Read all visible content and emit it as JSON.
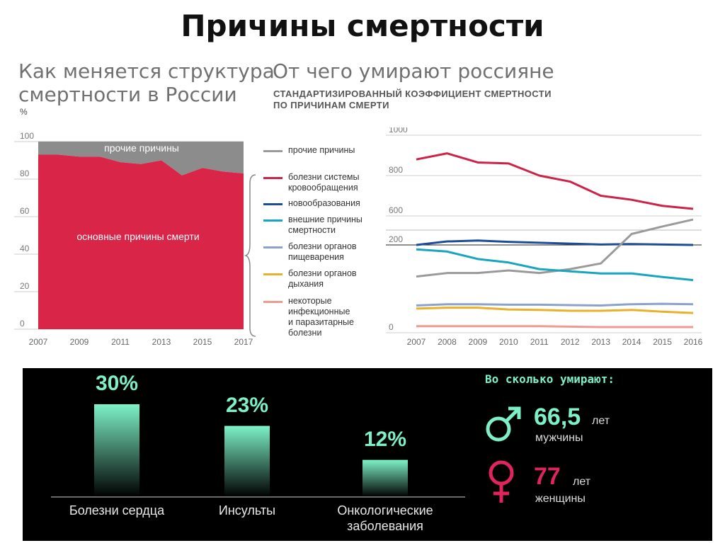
{
  "title": "Причины смертности",
  "left": {
    "title_line1": "Как меняется структура",
    "title_line2": "смертности в России",
    "unit": "%"
  },
  "right": {
    "title": "От чего умирают россияне",
    "subtitle_line1": "СТАНДАРТИЗИРОВАННЫЙ КОЭФФИЦИЕНТ СМЕРТНОСТИ",
    "subtitle_line2": "ПО ПРИЧИНАМ СМЕРТИ"
  },
  "legend": [
    {
      "lines": [
        "прочие причины"
      ],
      "color": "#9a9a9a"
    },
    {
      "lines": [
        "болезни системы",
        "кровообращения"
      ],
      "color": "#cc2348"
    },
    {
      "lines": [
        "новообразования"
      ],
      "color": "#1e4c96"
    },
    {
      "lines": [
        "внешние причины",
        "смертности"
      ],
      "color": "#17a5bf"
    },
    {
      "lines": [
        "болезни органов",
        "пищеварения"
      ],
      "color": "#8aa2cc"
    },
    {
      "lines": [
        "болезни органов",
        "дыхания"
      ],
      "color": "#e8b12a"
    },
    {
      "lines": [
        "некоторые",
        "инфекционные",
        "и паразитарные",
        "болезни"
      ],
      "color": "#f09a90"
    }
  ],
  "chart_data": [
    {
      "type": "area",
      "x": [
        "2007",
        "2008",
        "2009",
        "2010",
        "2011",
        "2012",
        "2013",
        "2014",
        "2015",
        "2016",
        "2017"
      ],
      "x_ticks": [
        "2007",
        "2009",
        "2011",
        "2013",
        "2015",
        "2017"
      ],
      "ylim": [
        0,
        100
      ],
      "y_ticks": [
        "0",
        "20",
        "40",
        "60",
        "80",
        "100"
      ],
      "series": [
        {
          "name": "основные причины смерти",
          "color": "#d92548",
          "values": [
            93,
            93,
            92,
            92,
            89,
            88,
            90,
            82,
            86,
            84,
            83
          ]
        },
        {
          "name": "прочие причины",
          "color": "#8c8c8c",
          "values": [
            7,
            7,
            8,
            8,
            11,
            12,
            10,
            18,
            14,
            16,
            17
          ]
        }
      ]
    },
    {
      "type": "line",
      "x": [
        "2007",
        "2008",
        "2009",
        "2010",
        "2011",
        "2012",
        "2013",
        "2014",
        "2015",
        "2016"
      ],
      "axis_breaks": [
        "1000",
        "800",
        "600",
        "200",
        "0"
      ],
      "series": [
        {
          "name": "болезни системы кровообращения",
          "color": "#cc2348",
          "values": [
            880,
            910,
            865,
            860,
            800,
            770,
            700,
            680,
            650,
            635
          ]
        },
        {
          "name": "новообразования",
          "color": "#1e4c96",
          "values": [
            200,
            208,
            210,
            207,
            205,
            203,
            201,
            202,
            201,
            200
          ]
        },
        {
          "name": "прочие причины",
          "color": "#9a9a9a",
          "values": [
            128,
            136,
            136,
            142,
            136,
            145,
            158,
            225,
            242,
            258
          ]
        },
        {
          "name": "внешние причины смертности",
          "color": "#17a5bf",
          "values": [
            190,
            185,
            168,
            160,
            145,
            140,
            135,
            135,
            127,
            120
          ]
        },
        {
          "name": "болезни органов пищеварения",
          "color": "#8aa2cc",
          "values": [
            62,
            65,
            65,
            64,
            64,
            63,
            62,
            65,
            66,
            65
          ]
        },
        {
          "name": "болезни органов дыхания",
          "color": "#e8b12a",
          "values": [
            55,
            57,
            57,
            53,
            52,
            50,
            50,
            52,
            48,
            45
          ]
        },
        {
          "name": "некоторые инфекционные и паразитарные болезни",
          "color": "#f09a90",
          "values": [
            15,
            15,
            15,
            15,
            15,
            14,
            13,
            13,
            13,
            13
          ]
        }
      ]
    },
    {
      "type": "bar",
      "categories": [
        "Болезни сердца",
        "Инсульты",
        "Онкологические заболевания"
      ],
      "values": [
        30,
        23,
        12
      ]
    }
  ],
  "left_labels": {
    "other": "прочие причины",
    "main": "основные причины смерти"
  },
  "bars": {
    "items": [
      {
        "pct": "30%",
        "label_lines": [
          "Болезни сердца"
        ]
      },
      {
        "pct": "23%",
        "label_lines": [
          "Инсульты"
        ]
      },
      {
        "pct": "12%",
        "label_lines": [
          "Онкологические",
          "заболевания"
        ]
      }
    ],
    "colors": {
      "top": "#7df2c8",
      "bottom": "#000000"
    }
  },
  "life": {
    "title": "Во сколько умирают:",
    "men": {
      "value": "66,5",
      "unit": "лет",
      "label": "мужчины",
      "color": "#7ef0c8"
    },
    "women": {
      "value": "77",
      "unit": "лет",
      "label": "женщины",
      "color": "#e0245e"
    }
  }
}
